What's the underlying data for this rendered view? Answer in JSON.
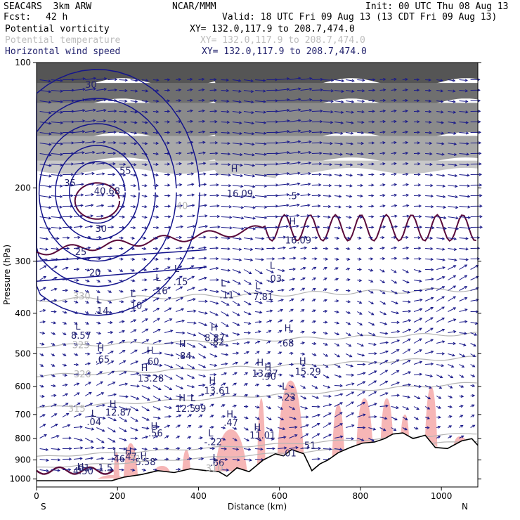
{
  "header": {
    "model": "SEAC4RS  3km ARW",
    "org": "NCAR/MMM",
    "init": "Init: 00 UTC Thu 08 Aug 13",
    "fcst_label": "Fcst:",
    "fcst_value": "42 h",
    "valid": "Valid: 18 UTC Fri 09 Aug 13 (13 CDT Fri 09 Aug 13)",
    "fields": [
      {
        "name": "Potential vorticity",
        "xy": "XY= 132.0,117.9 to 208.7,474.0"
      },
      {
        "name": "Potential temperature",
        "xy": "XY= 132.0,117.9 to 208.7,474.0"
      },
      {
        "name": "Horizontal wind speed",
        "xy": "XY= 132.0,117.9 to 208.7,474.0"
      }
    ]
  },
  "chart_data": {
    "type": "cross-section",
    "xlabel": "Distance (km)",
    "ylabel": "Pressure (hPa)",
    "xlim": [
      0,
      1090
    ],
    "ylim": [
      100,
      1045
    ],
    "y_scale": "log-pressure",
    "x_ticks": [
      "0",
      "200",
      "400",
      "600",
      "800",
      "1000"
    ],
    "x_tick_values": [
      0,
      200,
      400,
      600,
      800,
      1000
    ],
    "y_ticks": [
      "100",
      "200",
      "300",
      "400",
      "500",
      "600",
      "700",
      "800",
      "900",
      "1000"
    ],
    "y_tick_values": [
      100,
      200,
      300,
      400,
      500,
      600,
      700,
      800,
      900,
      1000
    ],
    "endpoint_labels": {
      "left": "S",
      "right": "N"
    },
    "colors": {
      "terrain": "#000000",
      "pv_fill": "#f6b6b6",
      "pv_contour": "#5a0a3a",
      "theta_contour": "#b4b4b4",
      "wind_speed_contour": "#14148c",
      "wind_vector": "#1a1a8a",
      "stratosphere_shade": "#444444"
    },
    "terrain_pressure": [
      {
        "x": 0,
        "p": 1010
      },
      {
        "x": 185,
        "p": 1010
      },
      {
        "x": 215,
        "p": 990
      },
      {
        "x": 260,
        "p": 975
      },
      {
        "x": 300,
        "p": 955
      },
      {
        "x": 340,
        "p": 965
      },
      {
        "x": 380,
        "p": 945
      },
      {
        "x": 420,
        "p": 955
      },
      {
        "x": 450,
        "p": 960
      },
      {
        "x": 470,
        "p": 985
      },
      {
        "x": 495,
        "p": 940
      },
      {
        "x": 525,
        "p": 960
      },
      {
        "x": 560,
        "p": 900
      },
      {
        "x": 590,
        "p": 870
      },
      {
        "x": 610,
        "p": 880
      },
      {
        "x": 630,
        "p": 850
      },
      {
        "x": 660,
        "p": 870
      },
      {
        "x": 680,
        "p": 955
      },
      {
        "x": 700,
        "p": 920
      },
      {
        "x": 720,
        "p": 900
      },
      {
        "x": 745,
        "p": 865
      },
      {
        "x": 775,
        "p": 840
      },
      {
        "x": 805,
        "p": 820
      },
      {
        "x": 835,
        "p": 815
      },
      {
        "x": 860,
        "p": 800
      },
      {
        "x": 880,
        "p": 780
      },
      {
        "x": 905,
        "p": 775
      },
      {
        "x": 930,
        "p": 800
      },
      {
        "x": 960,
        "p": 785
      },
      {
        "x": 985,
        "p": 840
      },
      {
        "x": 1015,
        "p": 845
      },
      {
        "x": 1050,
        "p": 810
      },
      {
        "x": 1075,
        "p": 800
      },
      {
        "x": 1090,
        "p": 830
      }
    ],
    "labels": [
      {
        "t": "L",
        "x": 96,
        "p": 438,
        "c": "navy"
      },
      {
        "t": "8.57",
        "x": 85,
        "p": 460,
        "c": "navy"
      },
      {
        "t": "L",
        "x": 148,
        "p": 378,
        "c": "navy"
      },
      {
        "t": ".14",
        "x": 142,
        "p": 402,
        "c": "navy"
      },
      {
        "t": "L",
        "x": 232,
        "p": 365,
        "c": "navy"
      },
      {
        "t": ".10",
        "x": 225,
        "p": 390,
        "c": "navy"
      },
      {
        "t": "L",
        "x": 294,
        "p": 335,
        "c": "navy"
      },
      {
        "t": ".16",
        "x": 288,
        "p": 360,
        "c": "navy"
      },
      {
        "t": "L",
        "x": 340,
        "p": 318,
        "c": "navy"
      },
      {
        "t": ".15",
        "x": 338,
        "p": 342,
        "c": "navy"
      },
      {
        "t": "L",
        "x": 455,
        "p": 345,
        "c": "navy"
      },
      {
        "t": ".11",
        "x": 452,
        "p": 368,
        "c": "navy"
      },
      {
        "t": "L",
        "x": 540,
        "p": 350,
        "c": "navy"
      },
      {
        "t": "7.81",
        "x": 535,
        "p": 372,
        "c": "navy"
      },
      {
        "t": "L",
        "x": 576,
        "p": 313,
        "c": "navy"
      },
      {
        "t": ".03",
        "x": 570,
        "p": 336,
        "c": "navy"
      },
      {
        "t": "H",
        "x": 430,
        "p": 440,
        "c": "navy"
      },
      {
        "t": "8.87",
        "x": 415,
        "p": 467,
        "c": "navy"
      },
      {
        "t": ".82",
        "x": 428,
        "p": 478,
        "c": "navy"
      },
      {
        "t": "H",
        "x": 612,
        "p": 442,
        "c": "navy"
      },
      {
        "t": ".68",
        "x": 600,
        "p": 480,
        "c": "navy"
      },
      {
        "t": "H",
        "x": 150,
        "p": 494,
        "c": "navy"
      },
      {
        "t": ".65",
        "x": 145,
        "p": 525,
        "c": "navy"
      },
      {
        "t": "H",
        "x": 272,
        "p": 500,
        "c": "navy"
      },
      {
        "t": ".60",
        "x": 267,
        "p": 532,
        "c": "navy"
      },
      {
        "t": "H",
        "x": 352,
        "p": 482,
        "c": "navy"
      },
      {
        "t": ".84",
        "x": 347,
        "p": 515,
        "c": "navy"
      },
      {
        "t": "H",
        "x": 258,
        "p": 550,
        "c": "navy"
      },
      {
        "t": "13.28",
        "x": 250,
        "p": 583,
        "c": "navy"
      },
      {
        "t": "H",
        "x": 544,
        "p": 535,
        "c": "navy"
      },
      {
        "t": "13.37",
        "x": 532,
        "p": 568,
        "c": "navy"
      },
      {
        "t": "H",
        "x": 563,
        "p": 548,
        "c": "navy"
      },
      {
        "t": ".90",
        "x": 556,
        "p": 578,
        "c": "navy"
      },
      {
        "t": "H",
        "x": 649,
        "p": 530,
        "c": "navy"
      },
      {
        "t": "15.29",
        "x": 638,
        "p": 562,
        "c": "navy"
      },
      {
        "t": "H",
        "x": 426,
        "p": 590,
        "c": "navy"
      },
      {
        "t": "13.61",
        "x": 414,
        "p": 625,
        "c": "navy"
      },
      {
        "t": "H",
        "x": 351,
        "p": 650,
        "c": "navy"
      },
      {
        "t": "12.5",
        "x": 343,
        "p": 690,
        "c": "navy"
      },
      {
        "t": "L",
        "x": 380,
        "p": 650,
        "c": "navy"
      },
      {
        "t": ".99",
        "x": 383,
        "p": 690,
        "c": "navy"
      },
      {
        "t": "H",
        "x": 180,
        "p": 672,
        "c": "navy"
      },
      {
        "t": "12.87",
        "x": 170,
        "p": 705,
        "c": "navy"
      },
      {
        "t": "L",
        "x": 135,
        "p": 708,
        "c": "navy"
      },
      {
        "t": ".04",
        "x": 124,
        "p": 742,
        "c": "navy"
      },
      {
        "t": "H",
        "x": 469,
        "p": 712,
        "c": "navy"
      },
      {
        "t": ".47",
        "x": 462,
        "p": 745,
        "c": "navy"
      },
      {
        "t": "H",
        "x": 282,
        "p": 760,
        "c": "navy"
      },
      {
        "t": ".56",
        "x": 276,
        "p": 790,
        "c": "navy"
      },
      {
        "t": "L",
        "x": 424,
        "p": 790,
        "c": "navy"
      },
      {
        "t": "-.22",
        "x": 414,
        "p": 830,
        "c": "navy"
      },
      {
        "t": "H",
        "x": 537,
        "p": 765,
        "c": "navy"
      },
      {
        "t": "11.01",
        "x": 526,
        "p": 800,
        "c": "navy"
      },
      {
        "t": "L",
        "x": 606,
        "p": 610,
        "c": "navy"
      },
      {
        "t": "-.23",
        "x": 596,
        "p": 648,
        "c": "navy"
      },
      {
        "t": "L",
        "x": 190,
        "p": 880,
        "c": "navy"
      },
      {
        "t": ".46",
        "x": 183,
        "p": 910,
        "c": "navy"
      },
      {
        "t": "H",
        "x": 218,
        "p": 872,
        "c": "navy"
      },
      {
        "t": ".47",
        "x": 212,
        "p": 900,
        "c": "navy"
      },
      {
        "t": "H",
        "x": 256,
        "p": 897,
        "c": "navy"
      },
      {
        "t": "5.58",
        "x": 244,
        "p": 927,
        "c": "navy"
      },
      {
        "t": "L",
        "x": 435,
        "p": 905,
        "c": "navy"
      },
      {
        "t": ".66",
        "x": 428,
        "p": 930,
        "c": "navy"
      },
      {
        "t": ".01",
        "x": 606,
        "p": 882,
        "c": "navy"
      },
      {
        "t": ".51",
        "x": 654,
        "p": 845,
        "c": "navy"
      },
      {
        "t": "H",
        "x": 480,
        "p": 183,
        "c": "navy"
      },
      {
        "t": "16.09",
        "x": 470,
        "p": 210,
        "c": "navy"
      },
      {
        "t": "H",
        "x": 624,
        "p": 245,
        "c": "navy"
      },
      {
        "t": "16.09",
        "x": 614,
        "p": 272,
        "c": "navy"
      },
      {
        "t": ".5",
        "x": 622,
        "p": 213,
        "c": "navy"
      },
      {
        "t": "40.68",
        "x": 142,
        "p": 207,
        "c": "navy"
      },
      {
        "t": "55",
        "x": 205,
        "p": 185,
        "c": "navy"
      },
      {
        "t": "35",
        "x": 68,
        "p": 198,
        "c": "navy"
      },
      {
        "t": "30",
        "x": 145,
        "p": 255,
        "c": "navy"
      },
      {
        "t": "25",
        "x": 95,
        "p": 290,
        "c": "navy"
      },
      {
        "t": "20",
        "x": 130,
        "p": 325,
        "c": "navy"
      },
      {
        "t": "30",
        "x": 120,
        "p": 115,
        "c": "navy"
      },
      {
        "t": "40",
        "x": 345,
        "p": 225,
        "c": "gray"
      },
      {
        "t": "330",
        "x": 90,
        "p": 370,
        "c": "gray"
      },
      {
        "t": "325",
        "x": 88,
        "p": 485,
        "c": "gray"
      },
      {
        "t": "320",
        "x": 92,
        "p": 570,
        "c": "gray"
      },
      {
        "t": "315",
        "x": 78,
        "p": 690,
        "c": "gray"
      },
      {
        "t": "310",
        "x": 230,
        "p": 910,
        "c": "gray"
      },
      {
        "t": "310",
        "x": 418,
        "p": 960,
        "c": "gray"
      },
      {
        "t": "H",
        "x": 100,
        "p": 952,
        "c": "navy"
      },
      {
        "t": "4.50",
        "x": 90,
        "p": 975,
        "c": "navy"
      },
      {
        "t": ".01",
        "x": 96,
        "p": 958,
        "c": "navy"
      },
      {
        "t": "1.5",
        "x": 152,
        "p": 958,
        "c": "navy"
      }
    ]
  }
}
